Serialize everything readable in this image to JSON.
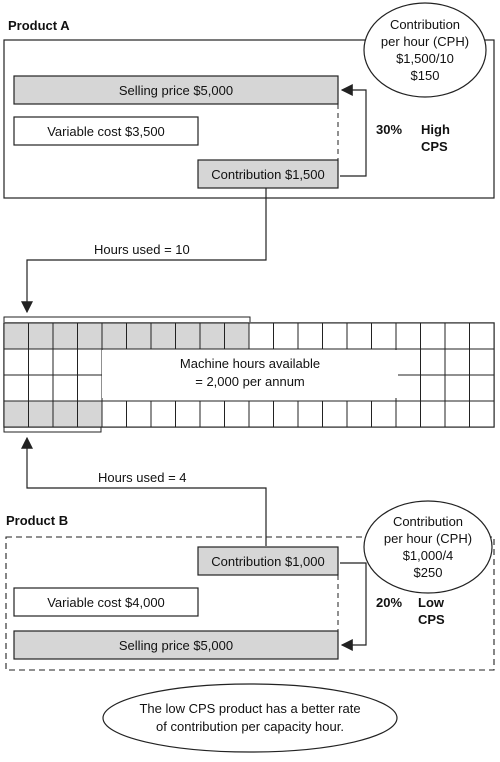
{
  "product_a": {
    "title": "Product A",
    "cph_line1": "Contribution",
    "cph_line2": "per hour (CPH)",
    "cph_line3": "$1,500/10",
    "cph_line4": "$150",
    "selling_price": "Selling price $5,000",
    "variable_cost": "Variable cost $3,500",
    "contribution": "Contribution $1,500",
    "percent": "30%",
    "cps_line1": "High",
    "cps_line2": "CPS",
    "hours_used": "Hours used = 10",
    "hours_value": 10
  },
  "grid": {
    "label_line1": "Machine hours available",
    "label_line2": "= 2,000 per annum"
  },
  "product_b": {
    "title": "Product B",
    "cph_line1": "Contribution",
    "cph_line2": "per hour (CPH)",
    "cph_line3": "$1,000/4",
    "cph_line4": "$250",
    "contribution": "Contribution $1,000",
    "variable_cost": "Variable cost $4,000",
    "selling_price": "Selling price $5,000",
    "percent": "20%",
    "cps_line1": "Low",
    "cps_line2": "CPS",
    "hours_used": "Hours used = 4",
    "hours_value": 4
  },
  "conclusion": {
    "line1": "The low CPS product has a better rate",
    "line2": "of contribution per capacity hour."
  },
  "colors": {
    "bar_fill": "#d6d6d6",
    "line": "#222222"
  }
}
